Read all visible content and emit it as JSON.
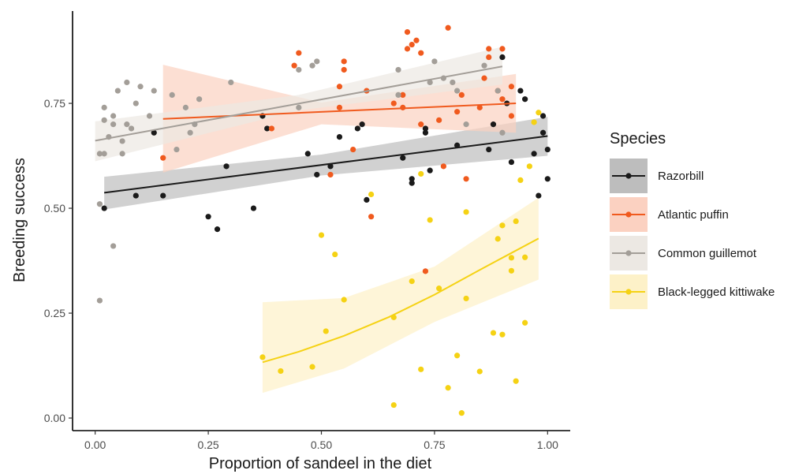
{
  "chart_data": {
    "type": "scatter",
    "xlabel": "Proportion of sandeel in the diet",
    "ylabel": "Breeding success",
    "xlim": [
      -0.05,
      1.05
    ],
    "ylim": [
      -0.03,
      0.97
    ],
    "x_ticks": [
      0.0,
      0.25,
      0.5,
      0.75,
      1.0
    ],
    "x_tick_labels": [
      "0.00",
      "0.25",
      "0.50",
      "0.75",
      "1.00"
    ],
    "y_ticks": [
      0.0,
      0.25,
      0.5,
      0.75
    ],
    "y_tick_labels": [
      "0.00",
      "0.25",
      "0.50",
      "0.75"
    ],
    "grid": false,
    "legend": {
      "title": "Species",
      "position": "right"
    },
    "series": [
      {
        "name": "Razorbill",
        "color": "#1a1a1a",
        "band_color": "#bdbdbd",
        "trend": [
          [
            0.02,
            0.537
          ],
          [
            1.0,
            0.672
          ]
        ],
        "band": {
          "x": [
            0.02,
            0.5,
            1.0
          ],
          "upper": [
            0.575,
            0.628,
            0.718
          ],
          "lower": [
            0.497,
            0.578,
            0.625
          ]
        },
        "points": [
          [
            0.02,
            0.5
          ],
          [
            0.09,
            0.53
          ],
          [
            0.13,
            0.68
          ],
          [
            0.15,
            0.53
          ],
          [
            0.25,
            0.48
          ],
          [
            0.27,
            0.45
          ],
          [
            0.29,
            0.6
          ],
          [
            0.35,
            0.5
          ],
          [
            0.37,
            0.72
          ],
          [
            0.38,
            0.69
          ],
          [
            0.47,
            0.63
          ],
          [
            0.49,
            0.58
          ],
          [
            0.52,
            0.6
          ],
          [
            0.54,
            0.67
          ],
          [
            0.58,
            0.69
          ],
          [
            0.59,
            0.7
          ],
          [
            0.6,
            0.52
          ],
          [
            0.68,
            0.62
          ],
          [
            0.7,
            0.56
          ],
          [
            0.7,
            0.57
          ],
          [
            0.73,
            0.69
          ],
          [
            0.73,
            0.68
          ],
          [
            0.8,
            0.65
          ],
          [
            0.74,
            0.59
          ],
          [
            0.87,
            0.64
          ],
          [
            0.88,
            0.7
          ],
          [
            0.9,
            0.86
          ],
          [
            0.91,
            0.75
          ],
          [
            0.92,
            0.61
          ],
          [
            0.94,
            0.78
          ],
          [
            0.95,
            0.76
          ],
          [
            0.97,
            0.63
          ],
          [
            0.98,
            0.53
          ],
          [
            0.99,
            0.72
          ],
          [
            0.99,
            0.68
          ],
          [
            1.0,
            0.64
          ],
          [
            1.0,
            0.57
          ]
        ]
      },
      {
        "name": "Atlantic puffin",
        "color": "#f05a1e",
        "band_color": "#fbd1c1",
        "trend": [
          [
            0.15,
            0.713
          ],
          [
            0.93,
            0.75
          ]
        ],
        "band": {
          "x": [
            0.15,
            0.5,
            0.93
          ],
          "upper": [
            0.842,
            0.752,
            0.82
          ],
          "lower": [
            0.585,
            0.7,
            0.68
          ]
        },
        "points": [
          [
            0.15,
            0.62
          ],
          [
            0.39,
            0.69
          ],
          [
            0.44,
            0.84
          ],
          [
            0.45,
            0.87
          ],
          [
            0.52,
            0.58
          ],
          [
            0.54,
            0.74
          ],
          [
            0.54,
            0.79
          ],
          [
            0.55,
            0.83
          ],
          [
            0.55,
            0.85
          ],
          [
            0.57,
            0.64
          ],
          [
            0.6,
            0.78
          ],
          [
            0.61,
            0.48
          ],
          [
            0.66,
            0.75
          ],
          [
            0.68,
            0.74
          ],
          [
            0.68,
            0.77
          ],
          [
            0.69,
            0.92
          ],
          [
            0.69,
            0.88
          ],
          [
            0.7,
            0.89
          ],
          [
            0.71,
            0.9
          ],
          [
            0.72,
            0.87
          ],
          [
            0.72,
            0.7
          ],
          [
            0.73,
            0.35
          ],
          [
            0.76,
            0.71
          ],
          [
            0.77,
            0.6
          ],
          [
            0.78,
            0.93
          ],
          [
            0.8,
            0.73
          ],
          [
            0.81,
            0.77
          ],
          [
            0.82,
            0.57
          ],
          [
            0.85,
            0.74
          ],
          [
            0.86,
            0.81
          ],
          [
            0.87,
            0.88
          ],
          [
            0.87,
            0.86
          ],
          [
            0.89,
            0.78
          ],
          [
            0.9,
            0.88
          ],
          [
            0.9,
            0.76
          ],
          [
            0.92,
            0.72
          ],
          [
            0.92,
            0.79
          ]
        ]
      },
      {
        "name": "Common guillemot",
        "color": "#a39e98",
        "band_color": "#ece8e3",
        "trend": [
          [
            0.0,
            0.661
          ],
          [
            0.9,
            0.838
          ]
        ],
        "band": {
          "x": [
            0.0,
            0.45,
            0.9
          ],
          "upper": [
            0.707,
            0.77,
            0.885
          ],
          "lower": [
            0.612,
            0.733,
            0.795
          ]
        },
        "points": [
          [
            0.01,
            0.28
          ],
          [
            0.01,
            0.63
          ],
          [
            0.01,
            0.51
          ],
          [
            0.02,
            0.63
          ],
          [
            0.02,
            0.71
          ],
          [
            0.02,
            0.74
          ],
          [
            0.03,
            0.67
          ],
          [
            0.04,
            0.72
          ],
          [
            0.04,
            0.7
          ],
          [
            0.04,
            0.41
          ],
          [
            0.05,
            0.78
          ],
          [
            0.06,
            0.66
          ],
          [
            0.06,
            0.63
          ],
          [
            0.07,
            0.8
          ],
          [
            0.07,
            0.7
          ],
          [
            0.08,
            0.69
          ],
          [
            0.09,
            0.75
          ],
          [
            0.1,
            0.79
          ],
          [
            0.12,
            0.72
          ],
          [
            0.13,
            0.78
          ],
          [
            0.17,
            0.77
          ],
          [
            0.18,
            0.64
          ],
          [
            0.2,
            0.74
          ],
          [
            0.21,
            0.68
          ],
          [
            0.22,
            0.7
          ],
          [
            0.23,
            0.76
          ],
          [
            0.3,
            0.8
          ],
          [
            0.45,
            0.83
          ],
          [
            0.45,
            0.74
          ],
          [
            0.48,
            0.84
          ],
          [
            0.49,
            0.85
          ],
          [
            0.67,
            0.77
          ],
          [
            0.67,
            0.83
          ],
          [
            0.74,
            0.8
          ],
          [
            0.75,
            0.85
          ],
          [
            0.77,
            0.81
          ],
          [
            0.79,
            0.8
          ],
          [
            0.8,
            0.78
          ],
          [
            0.82,
            0.7
          ],
          [
            0.86,
            0.84
          ],
          [
            0.89,
            0.78
          ],
          [
            0.9,
            0.68
          ]
        ]
      },
      {
        "name": "Black-legged kittiwake",
        "color": "#f5d214",
        "band_color": "#fdf1c8",
        "trend_curve": [
          [
            0.37,
            0.133
          ],
          [
            0.45,
            0.158
          ],
          [
            0.55,
            0.196
          ],
          [
            0.65,
            0.241
          ],
          [
            0.75,
            0.294
          ],
          [
            0.85,
            0.353
          ],
          [
            0.98,
            0.428
          ]
        ],
        "band": {
          "x": [
            0.37,
            0.55,
            0.75,
            0.98
          ],
          "upper": [
            0.276,
            0.286,
            0.361,
            0.525
          ],
          "lower": [
            0.06,
            0.118,
            0.229,
            0.33
          ]
        },
        "points": [
          [
            0.37,
            0.145
          ],
          [
            0.41,
            0.112
          ],
          [
            0.48,
            0.122
          ],
          [
            0.5,
            0.436
          ],
          [
            0.51,
            0.207
          ],
          [
            0.53,
            0.39
          ],
          [
            0.55,
            0.282
          ],
          [
            0.61,
            0.533
          ],
          [
            0.66,
            0.24
          ],
          [
            0.66,
            0.031
          ],
          [
            0.7,
            0.326
          ],
          [
            0.72,
            0.582
          ],
          [
            0.72,
            0.116
          ],
          [
            0.74,
            0.472
          ],
          [
            0.76,
            0.309
          ],
          [
            0.78,
            0.072
          ],
          [
            0.8,
            0.149
          ],
          [
            0.81,
            0.012
          ],
          [
            0.82,
            0.491
          ],
          [
            0.82,
            0.285
          ],
          [
            0.85,
            0.111
          ],
          [
            0.88,
            0.203
          ],
          [
            0.89,
            0.427
          ],
          [
            0.9,
            0.199
          ],
          [
            0.9,
            0.459
          ],
          [
            0.92,
            0.351
          ],
          [
            0.92,
            0.382
          ],
          [
            0.93,
            0.088
          ],
          [
            0.93,
            0.469
          ],
          [
            0.94,
            0.567
          ],
          [
            0.95,
            0.227
          ],
          [
            0.95,
            0.383
          ],
          [
            0.96,
            0.6
          ],
          [
            0.97,
            0.705
          ],
          [
            0.98,
            0.728
          ]
        ]
      }
    ]
  }
}
